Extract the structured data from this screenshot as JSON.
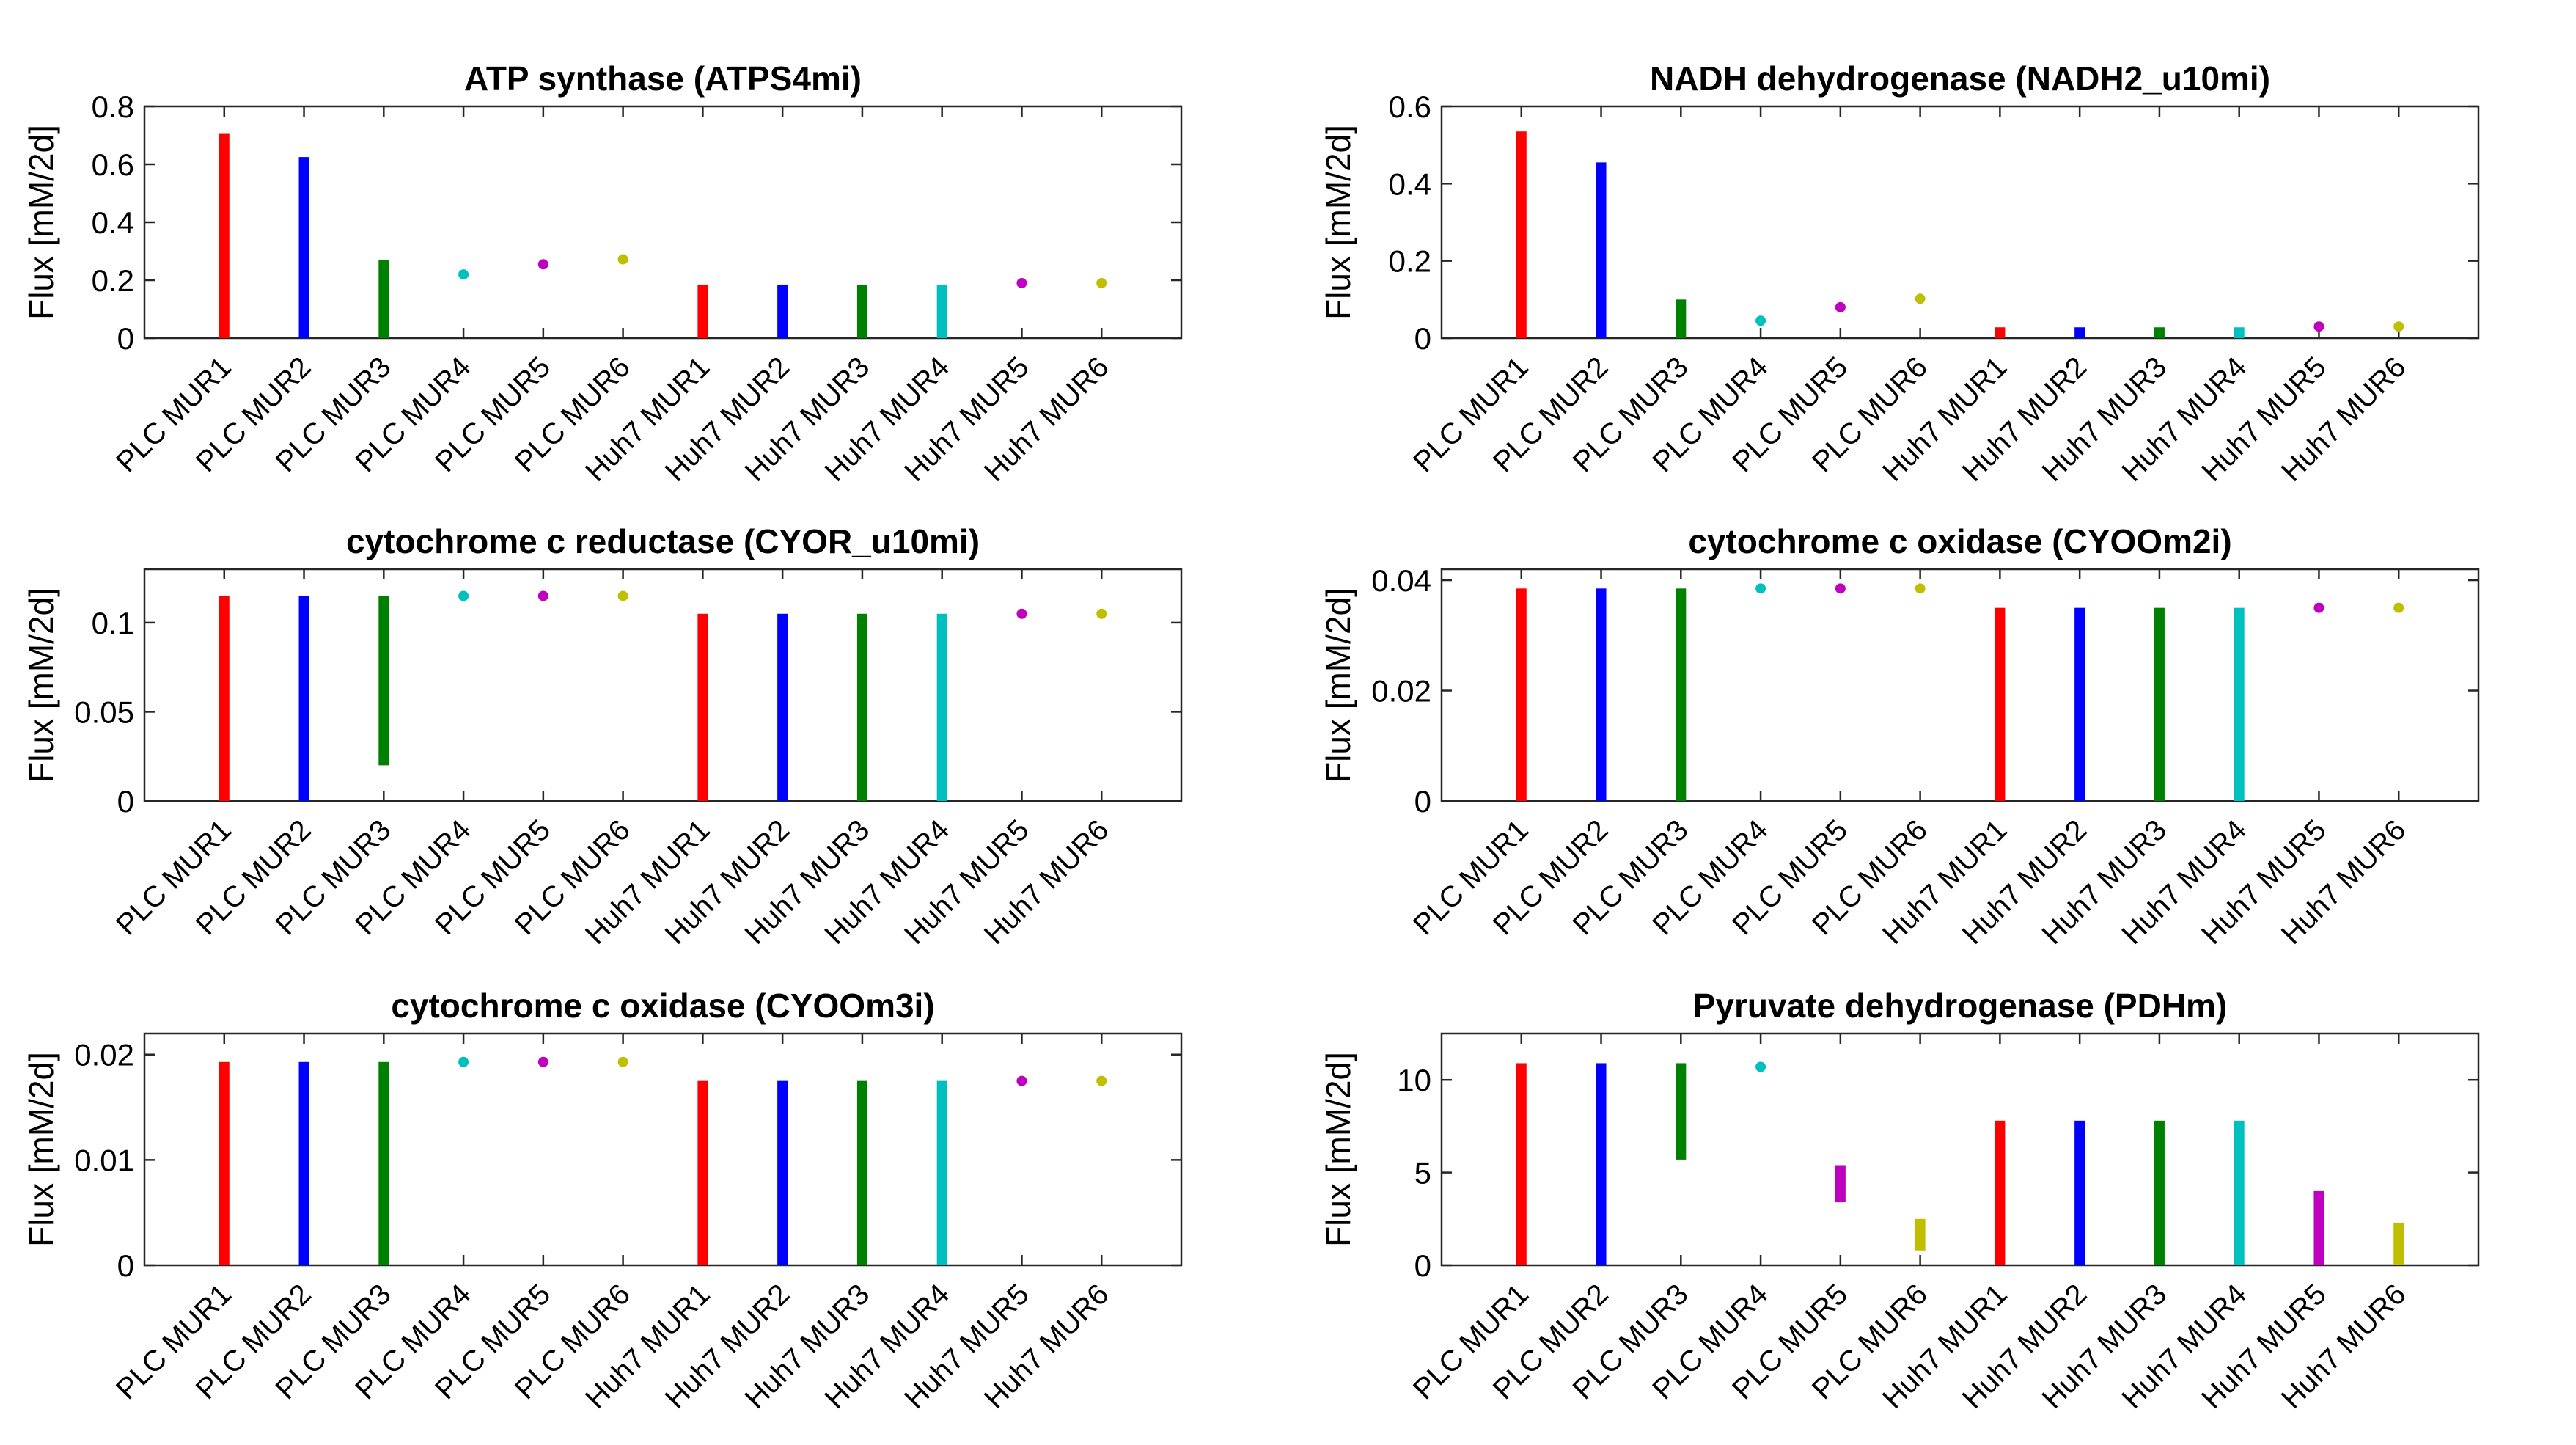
{
  "chart_data": [
    {
      "type": "bar",
      "style": "range",
      "title": "ATP synthase (ATPS4mi)",
      "ylabel": "Flux [mM/2d]",
      "xlabel": "",
      "ylim": [
        0,
        0.8
      ],
      "yticks": [
        0,
        0.2,
        0.4,
        0.6,
        0.8
      ],
      "ytick_labels": [
        "0",
        "0.2",
        "0.4",
        "0.6",
        "0.8"
      ],
      "categories": [
        "PLC MUR1",
        "PLC MUR2",
        "PLC MUR3",
        "PLC MUR4",
        "PLC MUR5",
        "PLC MUR6",
        "Huh7 MUR1",
        "Huh7 MUR2",
        "Huh7 MUR3",
        "Huh7 MUR4",
        "Huh7 MUR5",
        "Huh7 MUR6"
      ],
      "ranges": [
        [
          0,
          0.705
        ],
        [
          0,
          0.625
        ],
        [
          0,
          0.27
        ],
        [
          0.22,
          0.22
        ],
        [
          0.255,
          0.255
        ],
        [
          0.272,
          0.272
        ],
        [
          0,
          0.185
        ],
        [
          0,
          0.185
        ],
        [
          0,
          0.185
        ],
        [
          0,
          0.185
        ],
        [
          0.19,
          0.19
        ],
        [
          0.19,
          0.19
        ]
      ]
    },
    {
      "type": "bar",
      "style": "range",
      "title": "NADH dehydrogenase (NADH2_u10mi)",
      "ylabel": "Flux [mM/2d]",
      "xlabel": "",
      "ylim": [
        0,
        0.6
      ],
      "yticks": [
        0,
        0.2,
        0.4,
        0.6
      ],
      "ytick_labels": [
        "0",
        "0.2",
        "0.4",
        "0.6"
      ],
      "categories": [
        "PLC MUR1",
        "PLC MUR2",
        "PLC MUR3",
        "PLC MUR4",
        "PLC MUR5",
        "PLC MUR6",
        "Huh7 MUR1",
        "Huh7 MUR2",
        "Huh7 MUR3",
        "Huh7 MUR4",
        "Huh7 MUR5",
        "Huh7 MUR6"
      ],
      "ranges": [
        [
          0,
          0.535
        ],
        [
          0,
          0.455
        ],
        [
          0,
          0.1
        ],
        [
          0.045,
          0.045
        ],
        [
          0.08,
          0.08
        ],
        [
          0.102,
          0.102
        ],
        [
          0,
          0.028
        ],
        [
          0,
          0.028
        ],
        [
          0,
          0.028
        ],
        [
          0,
          0.028
        ],
        [
          0.03,
          0.03
        ],
        [
          0.03,
          0.03
        ]
      ]
    },
    {
      "type": "bar",
      "style": "range",
      "title": "cytochrome c reductase (CYOR_u10mi)",
      "ylabel": "Flux [mM/2d]",
      "xlabel": "",
      "ylim": [
        0,
        0.13
      ],
      "yticks": [
        0,
        0.05,
        0.1
      ],
      "ytick_labels": [
        "0",
        "0.05",
        "0.1"
      ],
      "categories": [
        "PLC MUR1",
        "PLC MUR2",
        "PLC MUR3",
        "PLC MUR4",
        "PLC MUR5",
        "PLC MUR6",
        "Huh7 MUR1",
        "Huh7 MUR2",
        "Huh7 MUR3",
        "Huh7 MUR4",
        "Huh7 MUR5",
        "Huh7 MUR6"
      ],
      "ranges": [
        [
          0,
          0.115
        ],
        [
          0,
          0.115
        ],
        [
          0.02,
          0.115
        ],
        [
          0.115,
          0.115
        ],
        [
          0.115,
          0.115
        ],
        [
          0.115,
          0.115
        ],
        [
          0,
          0.105
        ],
        [
          0,
          0.105
        ],
        [
          0,
          0.105
        ],
        [
          0,
          0.105
        ],
        [
          0.105,
          0.105
        ],
        [
          0.105,
          0.105
        ]
      ]
    },
    {
      "type": "bar",
      "style": "range",
      "title": "cytochrome c oxidase (CYOOm2i)",
      "ylabel": "Flux [mM/2d]",
      "xlabel": "",
      "ylim": [
        0,
        0.042
      ],
      "yticks": [
        0,
        0.02,
        0.04
      ],
      "ytick_labels": [
        "0",
        "0.02",
        "0.04"
      ],
      "categories": [
        "PLC MUR1",
        "PLC MUR2",
        "PLC MUR3",
        "PLC MUR4",
        "PLC MUR5",
        "PLC MUR6",
        "Huh7 MUR1",
        "Huh7 MUR2",
        "Huh7 MUR3",
        "Huh7 MUR4",
        "Huh7 MUR5",
        "Huh7 MUR6"
      ],
      "ranges": [
        [
          0,
          0.0385
        ],
        [
          0,
          0.0385
        ],
        [
          0,
          0.0385
        ],
        [
          0.0385,
          0.0385
        ],
        [
          0.0385,
          0.0385
        ],
        [
          0.0385,
          0.0385
        ],
        [
          0,
          0.035
        ],
        [
          0,
          0.035
        ],
        [
          0,
          0.035
        ],
        [
          0,
          0.035
        ],
        [
          0.035,
          0.035
        ],
        [
          0.035,
          0.035
        ]
      ]
    },
    {
      "type": "bar",
      "style": "range",
      "title": "cytochrome c oxidase (CYOOm3i)",
      "ylabel": "Flux [mM/2d]",
      "xlabel": "",
      "ylim": [
        0,
        0.022
      ],
      "yticks": [
        0,
        0.01,
        0.02
      ],
      "ytick_labels": [
        "0",
        "0.01",
        "0.02"
      ],
      "categories": [
        "PLC MUR1",
        "PLC MUR2",
        "PLC MUR3",
        "PLC MUR4",
        "PLC MUR5",
        "PLC MUR6",
        "Huh7 MUR1",
        "Huh7 MUR2",
        "Huh7 MUR3",
        "Huh7 MUR4",
        "Huh7 MUR5",
        "Huh7 MUR6"
      ],
      "ranges": [
        [
          0,
          0.0193
        ],
        [
          0,
          0.0193
        ],
        [
          0,
          0.0193
        ],
        [
          0.0193,
          0.0193
        ],
        [
          0.0193,
          0.0193
        ],
        [
          0.0193,
          0.0193
        ],
        [
          0,
          0.0175
        ],
        [
          0,
          0.0175
        ],
        [
          0,
          0.0175
        ],
        [
          0,
          0.0175
        ],
        [
          0.0175,
          0.0175
        ],
        [
          0.0175,
          0.0175
        ]
      ]
    },
    {
      "type": "bar",
      "style": "range",
      "title": "Pyruvate dehydrogenase (PDHm)",
      "ylabel": "Flux [mM/2d]",
      "xlabel": "",
      "ylim": [
        0,
        12.5
      ],
      "yticks": [
        0,
        5,
        10
      ],
      "ytick_labels": [
        "0",
        "5",
        "10"
      ],
      "categories": [
        "PLC MUR1",
        "PLC MUR2",
        "PLC MUR3",
        "PLC MUR4",
        "PLC MUR5",
        "PLC MUR6",
        "Huh7 MUR1",
        "Huh7 MUR2",
        "Huh7 MUR3",
        "Huh7 MUR4",
        "Huh7 MUR5",
        "Huh7 MUR6"
      ],
      "ranges": [
        [
          0,
          10.9
        ],
        [
          0,
          10.9
        ],
        [
          5.7,
          10.9
        ],
        [
          10.7,
          10.7
        ],
        [
          3.4,
          5.4
        ],
        [
          0.8,
          2.5
        ],
        [
          0,
          7.8
        ],
        [
          0,
          7.8
        ],
        [
          0,
          7.8
        ],
        [
          0,
          7.8
        ],
        [
          0,
          4.0
        ],
        [
          0,
          2.3
        ]
      ]
    }
  ],
  "colors": [
    "#ff0000",
    "#0000ff",
    "#008000",
    "#00bfbf",
    "#bf00bf",
    "#bfbf00",
    "#ff0000",
    "#0000ff",
    "#008000",
    "#00bfbf",
    "#bf00bf",
    "#bfbf00"
  ]
}
